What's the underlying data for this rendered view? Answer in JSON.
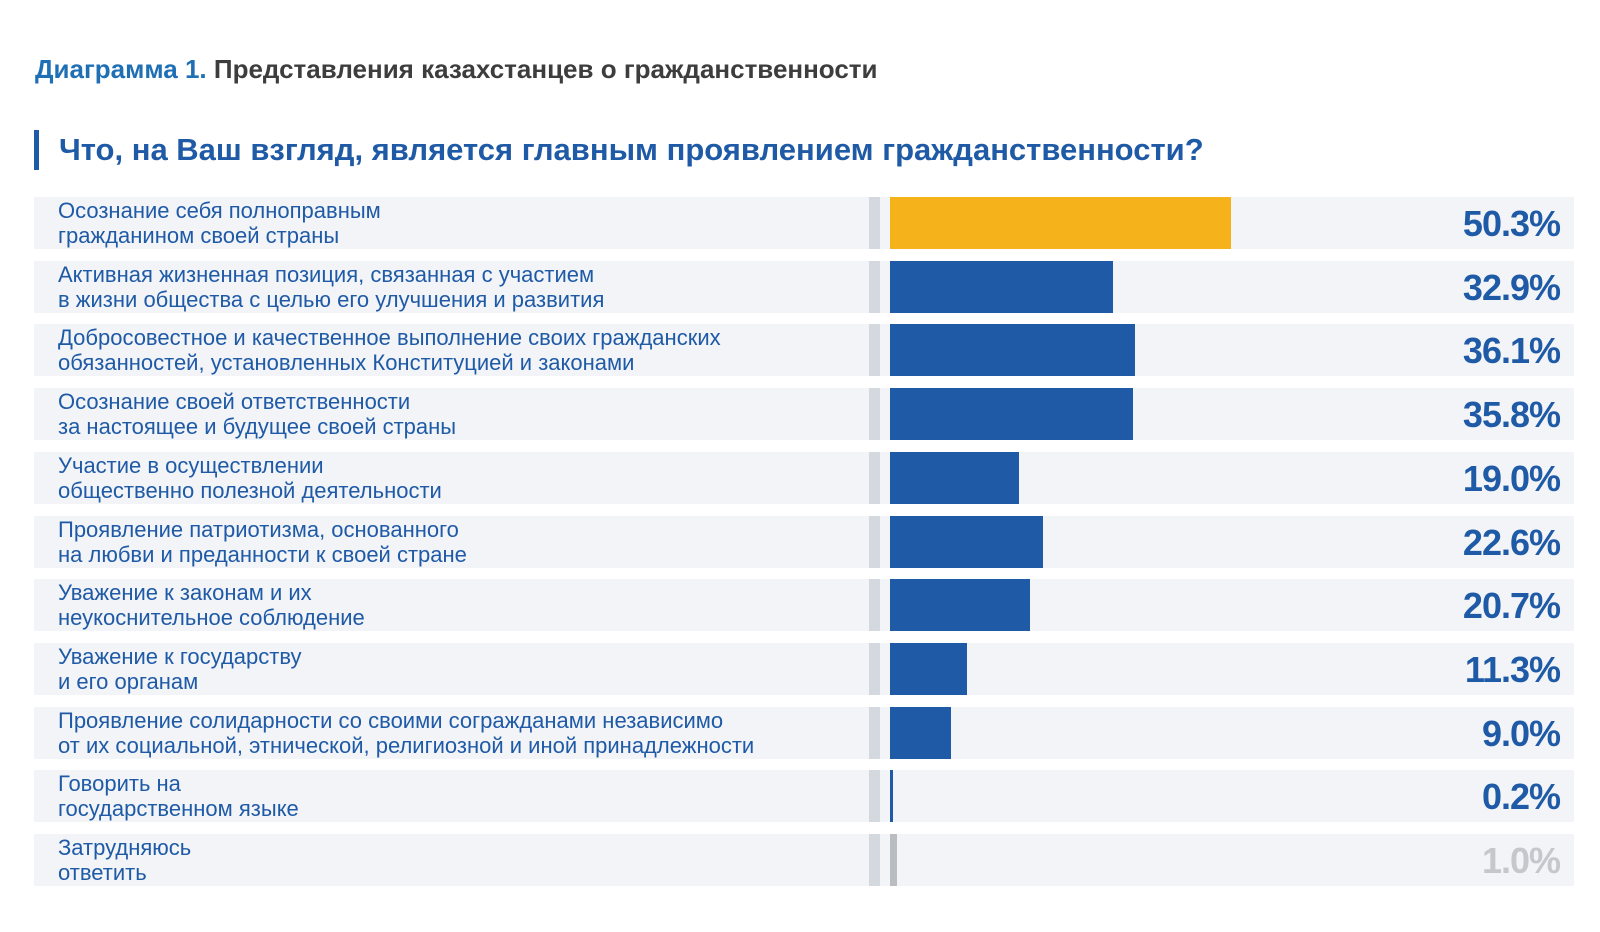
{
  "header": {
    "caption_label": "Диаграмма 1.",
    "caption_text": "Представления казахстанцев о гражданственности"
  },
  "chart_data": {
    "type": "bar",
    "orientation": "horizontal",
    "title": "Что, на Ваш взгляд, является главным проявлением гражданственности?",
    "value_unit": "%",
    "xlim": [
      0,
      100
    ],
    "categories": [
      "Осознание себя полноправным\nгражданином своей страны",
      "Активная жизненная позиция, связанная с участием\nв жизни общества с целью его улучшения и развития",
      "Добросовестное и качественное выполнение своих гражданских\nобязанностей, установленных Конституцией и законами",
      "Осознание своей ответственности\nза настоящее и будущее своей страны",
      "Участие в осуществлении\nобщественно полезной деятельности",
      "Проявление патриотизма, основанного\nна любви и преданности к своей стране",
      "Уважение к законам и их\nнеукоснительное соблюдение",
      "Уважение к государству\nи его органам",
      "Проявление солидарности со своими согражданами независимо\nот их социальной, этнической, религиозной и иной принадлежности",
      "Говорить на\nгосударственном языке",
      "Затрудняюсь\nответить"
    ],
    "values": [
      50.3,
      32.9,
      36.1,
      35.8,
      19.0,
      22.6,
      20.7,
      11.3,
      9.0,
      0.2,
      1.0
    ],
    "value_labels": [
      "50.3%",
      "32.9%",
      "36.1%",
      "35.8%",
      "19.0%",
      "22.6%",
      "20.7%",
      "11.3%",
      "9.0%",
      "0.2%",
      "1.0%"
    ],
    "bar_colors": [
      "#f5b21b",
      "#1f5aa6",
      "#1f5aa6",
      "#1f5aa6",
      "#1f5aa6",
      "#1f5aa6",
      "#1f5aa6",
      "#1f5aa6",
      "#1f5aa6",
      "#1f5aa6",
      "#b9bcc1"
    ],
    "value_label_colors": [
      "#1f5aa6",
      "#1f5aa6",
      "#1f5aa6",
      "#1f5aa6",
      "#1f5aa6",
      "#1f5aa6",
      "#1f5aa6",
      "#1f5aa6",
      "#1f5aa6",
      "#1f5aa6",
      "#c4c7cc"
    ],
    "grid": false,
    "legend": "none"
  }
}
